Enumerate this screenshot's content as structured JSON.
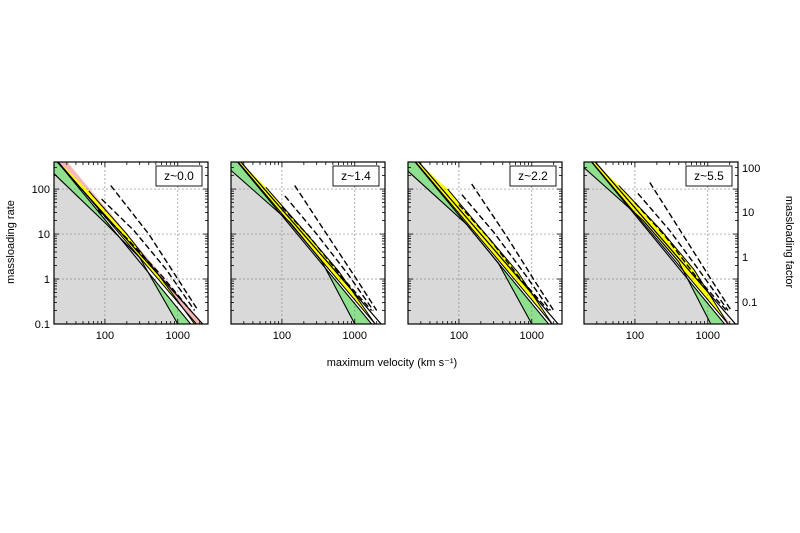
{
  "figure": {
    "xlabel": "maximum velocity (km s⁻¹)",
    "ylabel_left": "massloading rate",
    "ylabel_right": "massloading factor"
  },
  "colors": {
    "background_region": "#d9d9d9",
    "green_band": "#8ee08e",
    "yellow_band": "#ffff00",
    "pink_band": "#f4b8b8",
    "grid": "#8c8c8c"
  },
  "chart_data": [
    {
      "type": "area",
      "xscale": "log",
      "yscale": "log",
      "xlim": [
        20,
        2600
      ],
      "ylim": [
        0.1,
        400
      ],
      "x_ticks": [
        "100",
        "1000"
      ],
      "y_ticks_left": [
        "0.1",
        "1",
        "10",
        "100"
      ],
      "label": "z~0.0",
      "upper_line": [
        [
          20,
          480
        ],
        [
          2200,
          0.1
        ]
      ],
      "gray_upper": [
        [
          20,
          220
        ],
        [
          100,
          18
        ],
        [
          300,
          3
        ],
        [
          1000,
          0.1
        ]
      ],
      "green_lower": [
        [
          20,
          220
        ],
        [
          100,
          18
        ],
        [
          300,
          3
        ],
        [
          1000,
          0.1
        ]
      ],
      "green_upper": [
        [
          20,
          500
        ],
        [
          1500,
          0.1
        ]
      ],
      "yellow_lower": [
        [
          60,
          90
        ],
        [
          200,
          10
        ],
        [
          500,
          1.5
        ],
        [
          1700,
          0.1
        ]
      ],
      "yellow_upper": [
        [
          20,
          520
        ],
        [
          1800,
          0.1
        ]
      ],
      "pink_lower": [
        [
          20,
          520
        ],
        [
          1800,
          0.1
        ]
      ],
      "pink_upper": [
        [
          20,
          900
        ],
        [
          2200,
          0.1
        ]
      ],
      "dashed_lines": [
        [
          [
            80,
            35
          ],
          [
            200,
            8
          ],
          [
            600,
            1.2
          ],
          [
            1500,
            0.2
          ]
        ],
        [
          [
            90,
            60
          ],
          [
            250,
            12
          ],
          [
            700,
            1.6
          ],
          [
            1700,
            0.2
          ]
        ],
        [
          [
            120,
            120
          ],
          [
            400,
            10
          ],
          [
            1000,
            1.0
          ],
          [
            1900,
            0.2
          ]
        ]
      ]
    },
    {
      "type": "area",
      "xscale": "log",
      "yscale": "log",
      "xlim": [
        20,
        2600
      ],
      "ylim": [
        0.1,
        400
      ],
      "x_ticks": [
        "100",
        "1000"
      ],
      "label": "z~1.4",
      "upper_line": [
        [
          20,
          720
        ],
        [
          2300,
          0.1
        ]
      ],
      "gray_upper": [
        [
          20,
          260
        ],
        [
          130,
          18
        ],
        [
          350,
          2.5
        ],
        [
          1000,
          0.1
        ]
      ],
      "green_lower": [
        [
          20,
          260
        ],
        [
          130,
          18
        ],
        [
          350,
          2.5
        ],
        [
          1000,
          0.1
        ]
      ],
      "green_upper": [
        [
          20,
          600
        ],
        [
          1700,
          0.1
        ]
      ],
      "yellow_lower": [
        [
          60,
          110
        ],
        [
          200,
          12
        ],
        [
          600,
          1.5
        ],
        [
          1900,
          0.1
        ]
      ],
      "yellow_upper": [
        [
          20,
          620
        ],
        [
          1900,
          0.1
        ]
      ],
      "pink_lower": [
        [
          20,
          620
        ],
        [
          1900,
          0.1
        ]
      ],
      "pink_upper": [
        [
          20,
          680
        ],
        [
          2000,
          0.1
        ]
      ],
      "dashed_lines": [
        [
          [
            100,
            40
          ],
          [
            250,
            8
          ],
          [
            700,
            1.0
          ],
          [
            1700,
            0.2
          ]
        ],
        [
          [
            110,
            70
          ],
          [
            300,
            10
          ],
          [
            800,
            1.3
          ],
          [
            1800,
            0.2
          ]
        ],
        [
          [
            150,
            120
          ],
          [
            450,
            8
          ],
          [
            1100,
            0.9
          ],
          [
            2000,
            0.2
          ]
        ]
      ]
    },
    {
      "type": "area",
      "xscale": "log",
      "yscale": "log",
      "xlim": [
        20,
        2600
      ],
      "ylim": [
        0.1,
        400
      ],
      "x_ticks": [
        "100",
        "1000"
      ],
      "label": "z~2.2",
      "upper_line": [
        [
          20,
          760
        ],
        [
          2300,
          0.1
        ]
      ],
      "gray_upper": [
        [
          20,
          250
        ],
        [
          130,
          16
        ],
        [
          350,
          2.2
        ],
        [
          1000,
          0.1
        ]
      ],
      "green_lower": [
        [
          20,
          250
        ],
        [
          130,
          16
        ],
        [
          350,
          2.2
        ],
        [
          1000,
          0.1
        ]
      ],
      "green_upper": [
        [
          20,
          620
        ],
        [
          1700,
          0.1
        ]
      ],
      "yellow_lower": [
        [
          70,
          100
        ],
        [
          220,
          11
        ],
        [
          650,
          1.4
        ],
        [
          1900,
          0.1
        ]
      ],
      "yellow_upper": [
        [
          20,
          640
        ],
        [
          1900,
          0.1
        ]
      ],
      "pink_lower": [
        [
          20,
          640
        ],
        [
          1900,
          0.1
        ]
      ],
      "pink_upper": [
        [
          20,
          700
        ],
        [
          2000,
          0.1
        ]
      ],
      "dashed_lines": [
        [
          [
            100,
            45
          ],
          [
            260,
            8
          ],
          [
            700,
            1.0
          ],
          [
            1700,
            0.2
          ]
        ],
        [
          [
            110,
            75
          ],
          [
            300,
            11
          ],
          [
            800,
            1.3
          ],
          [
            1800,
            0.2
          ]
        ],
        [
          [
            150,
            130
          ],
          [
            450,
            9
          ],
          [
            1100,
            0.9
          ],
          [
            2000,
            0.2
          ]
        ]
      ]
    },
    {
      "type": "area",
      "xscale": "log",
      "yscale": "log",
      "xlim": [
        20,
        2600
      ],
      "ylim": [
        0.1,
        400
      ],
      "x_ticks": [
        "100",
        "1000"
      ],
      "y_ticks_right": [
        "0.1",
        "1",
        "10",
        "100"
      ],
      "label": "z~5.5",
      "upper_line": [
        [
          20,
          780
        ],
        [
          2400,
          0.1
        ]
      ],
      "gray_upper": [
        [
          20,
          300
        ],
        [
          130,
          20
        ],
        [
          400,
          2.4
        ],
        [
          1100,
          0.1
        ]
      ],
      "green_lower": [
        [
          20,
          300
        ],
        [
          130,
          20
        ],
        [
          400,
          2.4
        ],
        [
          1100,
          0.1
        ]
      ],
      "green_upper": [
        [
          20,
          640
        ],
        [
          1700,
          0.1
        ]
      ],
      "yellow_lower": [
        [
          60,
          120
        ],
        [
          220,
          13
        ],
        [
          650,
          1.6
        ],
        [
          1900,
          0.1
        ]
      ],
      "yellow_upper": [
        [
          20,
          650
        ],
        [
          1900,
          0.1
        ]
      ],
      "pink_lower": [
        [
          20,
          650
        ],
        [
          1900,
          0.1
        ]
      ],
      "pink_upper": [
        [
          20,
          720
        ],
        [
          2100,
          0.1
        ]
      ],
      "dashed_lines": [
        [
          [
            100,
            50
          ],
          [
            260,
            9
          ],
          [
            700,
            1.1
          ],
          [
            1800,
            0.2
          ]
        ],
        [
          [
            110,
            80
          ],
          [
            300,
            12
          ],
          [
            800,
            1.4
          ],
          [
            1900,
            0.2
          ]
        ],
        [
          [
            160,
            140
          ],
          [
            450,
            10
          ],
          [
            1100,
            1.0
          ],
          [
            2100,
            0.2
          ]
        ]
      ]
    }
  ]
}
